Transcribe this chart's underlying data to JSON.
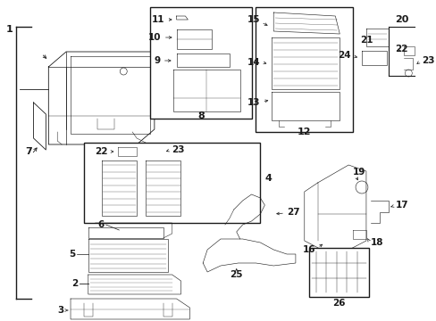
{
  "bg_color": "#ffffff",
  "fig_width": 4.89,
  "fig_height": 3.6,
  "dpi": 100,
  "line_color": "#1a1a1a",
  "lw": 0.6
}
